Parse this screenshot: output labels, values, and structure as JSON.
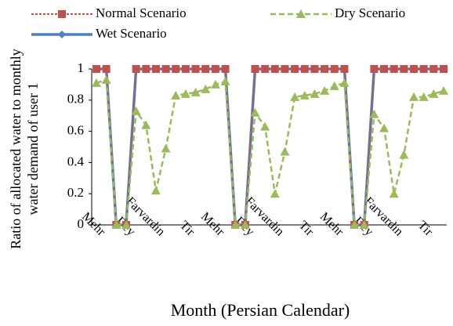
{
  "chart_data": {
    "type": "line",
    "y_label": [
      "Ratio of allocated water to monthly",
      "water demand of user 1"
    ],
    "x_label": "Month (Persian Calendar)",
    "categories": [
      "Mehr",
      null,
      null,
      "Dey",
      null,
      null,
      "Farvardin",
      null,
      null,
      "Tir",
      null,
      null,
      "Mehr",
      null,
      null,
      "Dey",
      null,
      null,
      "Farvardin",
      null,
      null,
      "Tir",
      null,
      null,
      "Mehr",
      null,
      null,
      "Dey",
      null,
      null,
      "Farvardin",
      null,
      null,
      "Tir",
      null,
      null
    ],
    "series": [
      {
        "name": "Wet Scenario",
        "color": "#4f81bd",
        "marker": "diamond",
        "values": [
          1,
          1,
          0,
          0,
          1,
          1,
          1,
          1,
          1,
          1,
          1,
          1,
          1,
          1,
          0,
          0,
          1,
          1,
          1,
          1,
          1,
          1,
          1,
          1,
          1,
          1,
          0,
          0,
          1,
          1,
          1,
          1,
          1,
          1,
          1,
          1
        ]
      },
      {
        "name": "Normal Scenario",
        "color": "#c0504d",
        "marker": "square",
        "values": [
          1,
          1,
          0,
          0,
          1,
          1,
          1,
          1,
          1,
          1,
          1,
          1,
          1,
          1,
          0,
          0,
          1,
          1,
          1,
          1,
          1,
          1,
          1,
          1,
          1,
          1,
          0,
          0,
          1,
          1,
          1,
          1,
          1,
          1,
          1,
          1
        ]
      },
      {
        "name": "Dry Scenario",
        "color": "#9bbb59",
        "marker": "triangle",
        "values": [
          0.91,
          0.93,
          0,
          0,
          0.73,
          0.64,
          0.22,
          0.49,
          0.83,
          0.84,
          0.85,
          0.87,
          0.9,
          0.92,
          0,
          0,
          0.72,
          0.63,
          0.2,
          0.47,
          0.82,
          0.83,
          0.84,
          0.86,
          0.89,
          0.91,
          0,
          0,
          0.71,
          0.62,
          0.2,
          0.45,
          0.82,
          0.82,
          0.84,
          0.86
        ]
      }
    ],
    "ylim": [
      0,
      1
    ],
    "yticks": [
      0,
      0.2,
      0.4,
      0.6,
      0.8,
      1
    ],
    "grid": false
  }
}
